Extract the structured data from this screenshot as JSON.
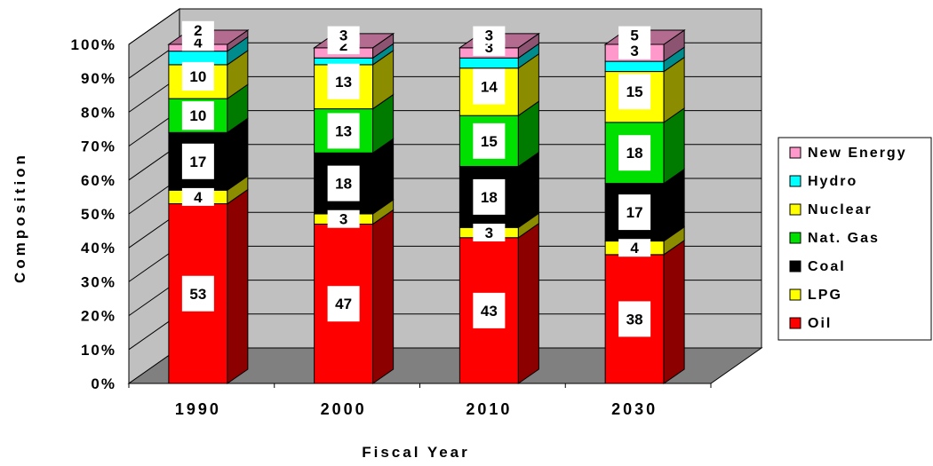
{
  "chart_data": {
    "type": "bar",
    "stacked": true,
    "three_d": true,
    "title": "",
    "xlabel": "Fiscal Year",
    "ylabel": "Composition",
    "ylim": [
      0,
      100
    ],
    "ytick_labels": [
      "0%",
      "10%",
      "20%",
      "30%",
      "40%",
      "50%",
      "60%",
      "70%",
      "80%",
      "90%",
      "100%"
    ],
    "grid": true,
    "legend_position": "right",
    "categories": [
      "1990",
      "2000",
      "2010",
      "2030"
    ],
    "series": [
      {
        "name": "Oil",
        "color": "#ff0000",
        "values": [
          53,
          47,
          43,
          38
        ]
      },
      {
        "name": "LPG",
        "color": "#ffff00",
        "values": [
          4,
          3,
          3,
          4
        ]
      },
      {
        "name": "Coal",
        "color": "#000000",
        "values": [
          17,
          18,
          18,
          17
        ]
      },
      {
        "name": "Nat. Gas",
        "color": "#00e000",
        "values": [
          10,
          13,
          15,
          18
        ]
      },
      {
        "name": "Nuclear",
        "color": "#ffff00",
        "values": [
          10,
          13,
          14,
          15
        ]
      },
      {
        "name": "Hydro",
        "color": "#00ffff",
        "values": [
          4,
          2,
          3,
          3
        ]
      },
      {
        "name": "New Energy",
        "color": "#ff99cc",
        "values": [
          2,
          3,
          3,
          5
        ]
      }
    ]
  }
}
